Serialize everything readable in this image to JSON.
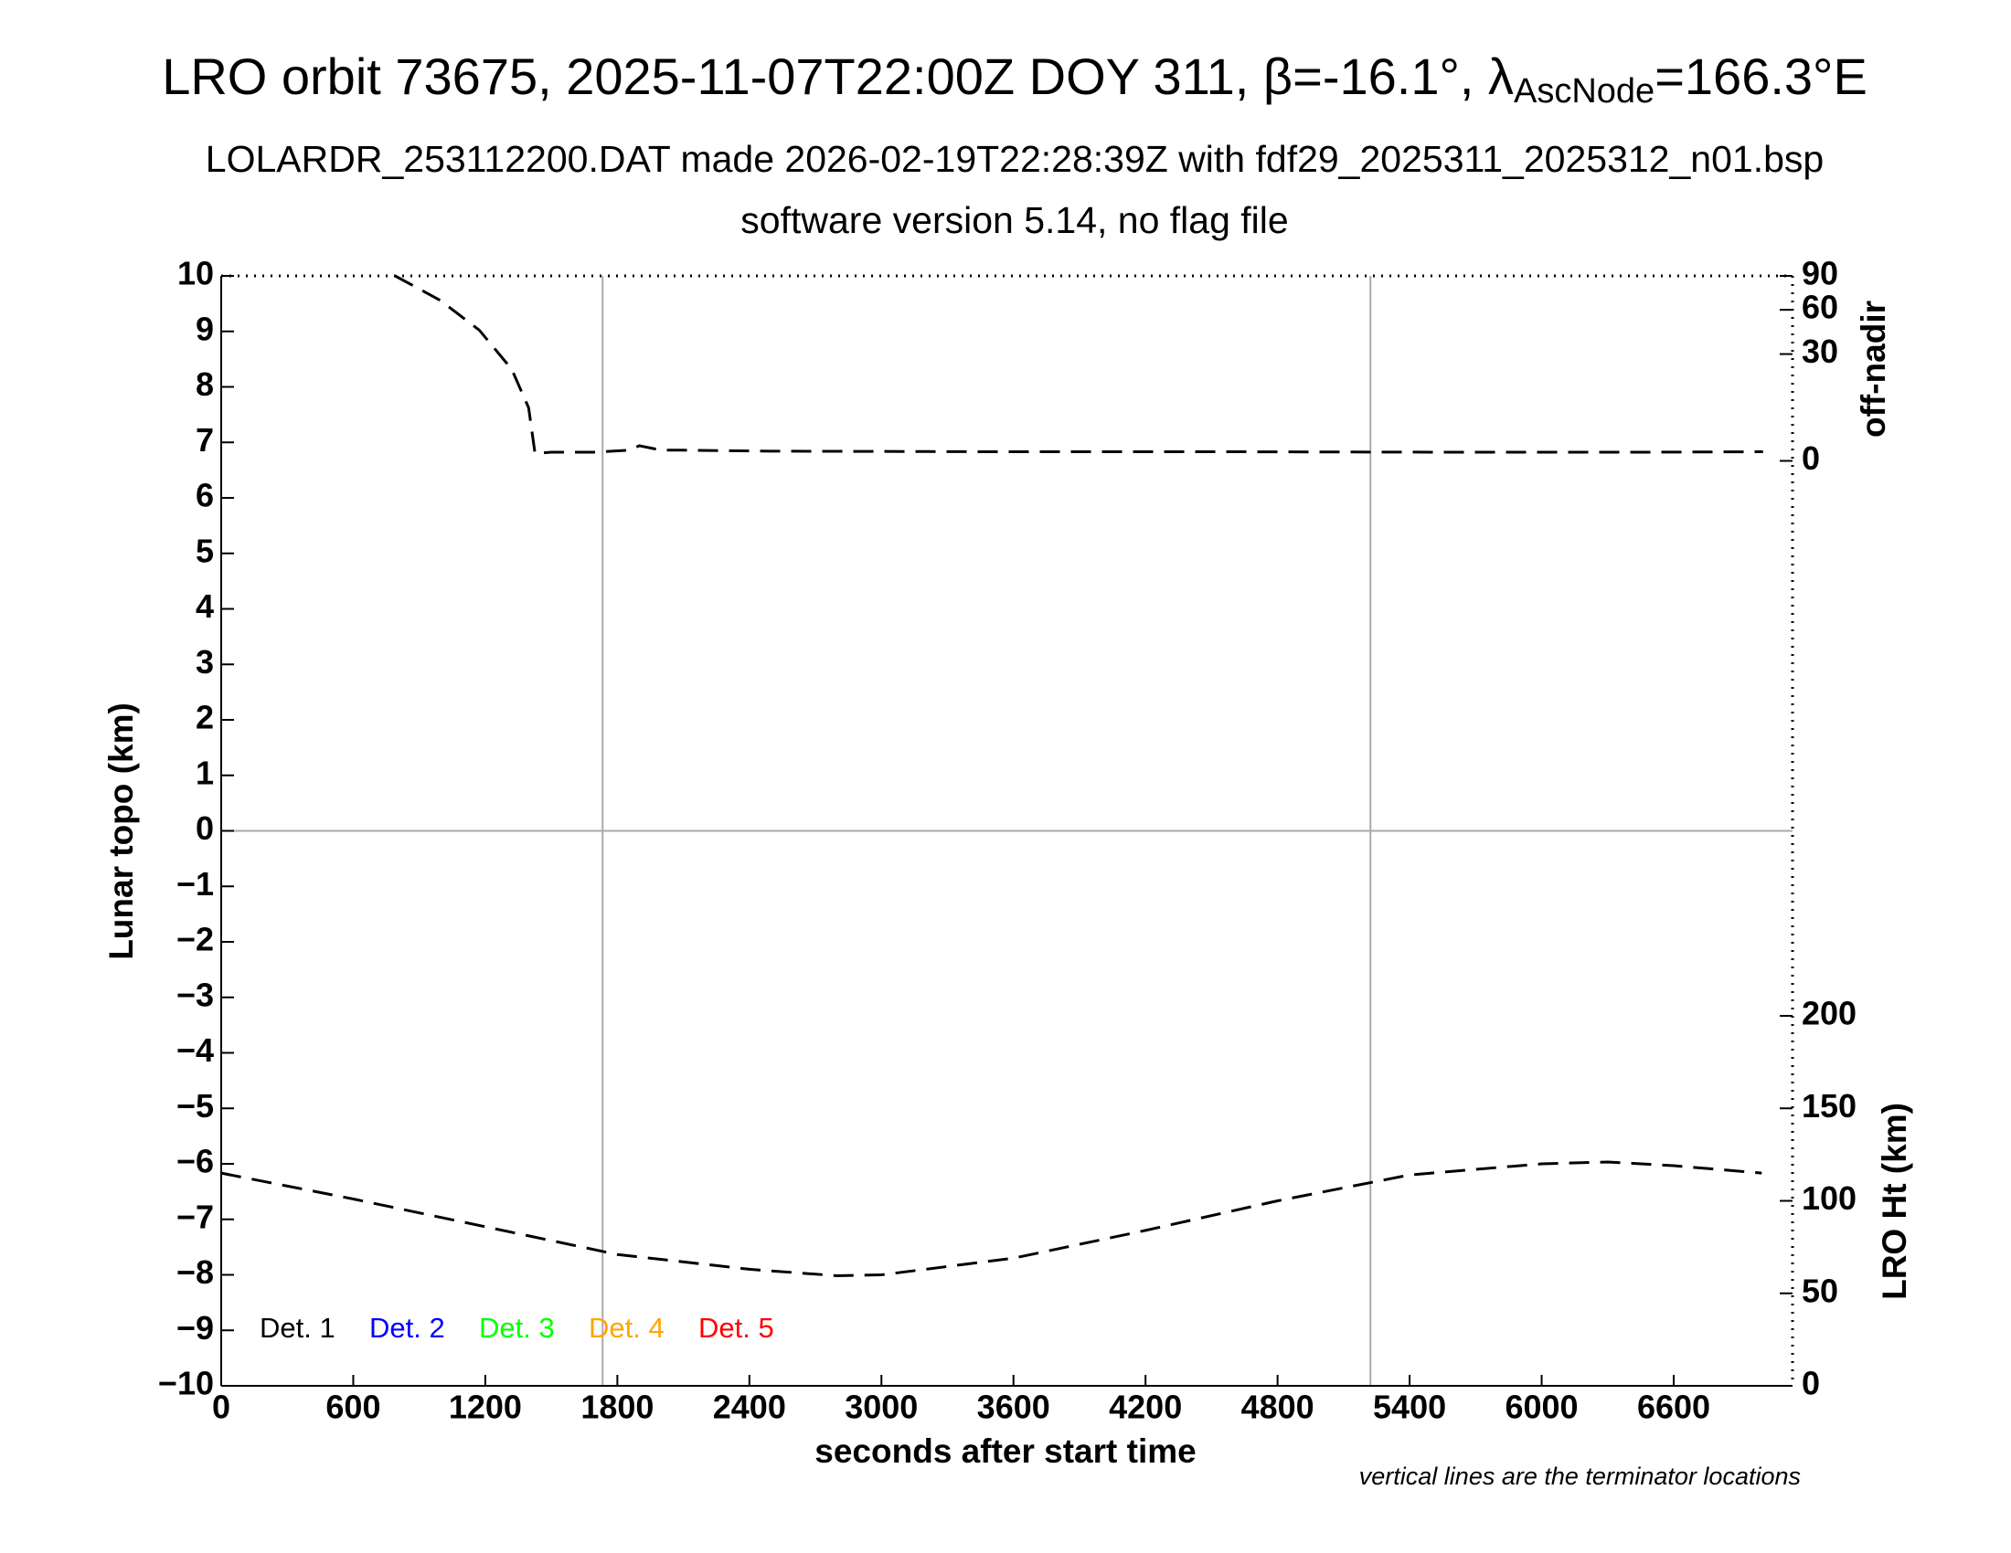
{
  "chart_data": {
    "type": "line",
    "title": [
      "LRO orbit 73675, 2025-11-07T22:00Z DOY 311, β=-16.1°, λ",
      "AscNode",
      "=166.3°E"
    ],
    "subtitle": [
      "LOLARDR_253112200.DAT made 2026-02-19T22:28:39Z with fdf29_2025311_2025312_n01.bsp",
      "software version 5.14, no flag file"
    ],
    "xlabel": "seconds after start time",
    "ylabel": "Lunar topo (km)",
    "y2label": "off-nadir",
    "y3label": "LRO Ht (km)",
    "note": "vertical lines are the terminator locations",
    "xlim": [
      0,
      7140
    ],
    "xticks": [
      0,
      600,
      1200,
      1800,
      2400,
      3000,
      3600,
      4200,
      4800,
      5400,
      6000,
      6600
    ],
    "ylim": [
      -10,
      10
    ],
    "yticks": [
      {
        "value": -10,
        "label": "−10"
      },
      {
        "value": -9,
        "label": "−9"
      },
      {
        "value": -8,
        "label": "−8"
      },
      {
        "value": -7,
        "label": "−7"
      },
      {
        "value": -6,
        "label": "−6"
      },
      {
        "value": -5,
        "label": "−5"
      },
      {
        "value": -4,
        "label": "−4"
      },
      {
        "value": -3,
        "label": "−3"
      },
      {
        "value": -2,
        "label": "−2"
      },
      {
        "value": -1,
        "label": "−1"
      },
      0,
      1,
      2,
      3,
      4,
      5,
      6,
      7,
      8,
      9,
      10
    ],
    "y2lim": [
      0,
      90
    ],
    "y2ticks": [
      0,
      30,
      60,
      90
    ],
    "y2scale": "sqrt",
    "y3lim": [
      0,
      200
    ],
    "y3ticks": [
      0,
      50,
      100,
      150,
      200
    ],
    "vlines": [
      1733,
      5222
    ],
    "series": [
      {
        "axis": "y2",
        "color": "#000000",
        "x": [
          790,
          996,
          1173,
          1320,
          1397,
          1426,
          1500,
          1600,
          1700,
          1850,
          1900,
          2000,
          2100,
          2500,
          3500,
          4500,
          5500,
          6500,
          7006
        ],
        "values": [
          90,
          67.7,
          44.9,
          22.1,
          7.4,
          0.14,
          0.2,
          0.2,
          0.2,
          0.3,
          0.6,
          0.3,
          0.3,
          0.25,
          0.22,
          0.22,
          0.2,
          0.2,
          0.22
        ]
      },
      {
        "axis": "y3",
        "color": "#000000",
        "x": [
          0,
          600,
          1200,
          1800,
          2400,
          2800,
          3000,
          3600,
          4200,
          4800,
          5400,
          6000,
          6300,
          6600,
          7000
        ],
        "values": [
          115,
          101,
          86,
          71,
          63,
          59.5,
          60,
          69,
          84,
          100,
          114,
          120,
          121,
          119,
          115
        ]
      }
    ],
    "legend": [
      {
        "name": "Det. 1",
        "color": "#000000"
      },
      {
        "name": "Det. 2",
        "color": "#0000ff"
      },
      {
        "name": "Det. 3",
        "color": "#00ff00"
      },
      {
        "name": "Det. 4",
        "color": "#ffa500"
      },
      {
        "name": "Det. 5",
        "color": "#ff0000"
      }
    ]
  }
}
